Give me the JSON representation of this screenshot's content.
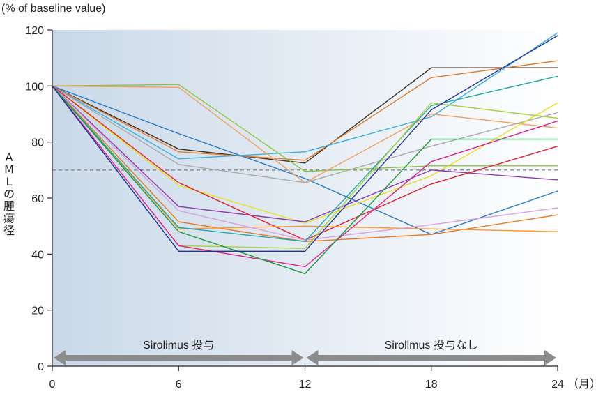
{
  "chart_data": {
    "type": "line",
    "title": "",
    "unit_label": "(% of baseline value)",
    "ylabel": "AMLの腫瘍径",
    "xlabel_unit": "（月）",
    "x": [
      0,
      6,
      12,
      18,
      24
    ],
    "x_ticks": [
      "0",
      "6",
      "12",
      "18",
      "24"
    ],
    "y_ticks": [
      "0",
      "20",
      "40",
      "60",
      "80",
      "100",
      "120"
    ],
    "ylim": [
      0,
      120
    ],
    "xlim": [
      0,
      24
    ],
    "reference_line": {
      "y": 70,
      "style": "dashed",
      "color": "#888888"
    },
    "phases": [
      {
        "label": "Sirolimus 投与",
        "x_start": 0,
        "x_end": 12
      },
      {
        "label": "Sirolimus 投与なし",
        "x_start": 12,
        "x_end": 24
      }
    ],
    "background": {
      "shaded_from": 0,
      "shaded_to": 24,
      "color_left": "#c9d8e8",
      "color_right": "#ffffff"
    },
    "legend": "none",
    "grid": false,
    "series": [
      {
        "color": "#3a2a1c",
        "points": [
          [
            0,
            100
          ],
          [
            6,
            77.5
          ],
          [
            12,
            72.5
          ],
          [
            18,
            106.5
          ],
          [
            24,
            106.5
          ]
        ]
      },
      {
        "color": "#e07a2a",
        "points": [
          [
            0,
            100
          ],
          [
            6,
            76.5
          ],
          [
            12,
            73.5
          ],
          [
            18,
            103
          ],
          [
            24,
            109
          ]
        ]
      },
      {
        "color": "#2a7bc8",
        "points": [
          [
            0,
            100
          ],
          [
            6,
            83
          ],
          [
            12,
            67
          ],
          [
            18,
            47
          ],
          [
            24,
            62.5
          ]
        ]
      },
      {
        "color": "#35b0d8",
        "points": [
          [
            0,
            100
          ],
          [
            6,
            74
          ],
          [
            12,
            76.5
          ],
          [
            18,
            89
          ],
          [
            24,
            119
          ]
        ]
      },
      {
        "color": "#8cc63e",
        "points": [
          [
            0,
            100
          ],
          [
            6,
            100.5
          ],
          [
            12,
            69.5
          ],
          [
            18,
            71.5
          ],
          [
            24,
            71.5
          ]
        ]
      },
      {
        "color": "#f0a060",
        "points": [
          [
            0,
            100
          ],
          [
            6,
            99.5
          ],
          [
            12,
            65.5
          ],
          [
            18,
            90
          ],
          [
            24,
            85
          ]
        ]
      },
      {
        "color": "#aaaaaa",
        "points": [
          [
            0,
            100
          ],
          [
            6,
            72
          ],
          [
            12,
            65.5
          ],
          [
            18,
            78.5
          ],
          [
            24,
            90.5
          ]
        ]
      },
      {
        "color": "#e8e020",
        "points": [
          [
            0,
            100
          ],
          [
            6,
            64.5
          ],
          [
            12,
            51
          ],
          [
            18,
            68
          ],
          [
            24,
            94
          ]
        ]
      },
      {
        "color": "#8a3aa8",
        "points": [
          [
            0,
            100
          ],
          [
            6,
            57
          ],
          [
            12,
            51.5
          ],
          [
            18,
            70
          ],
          [
            24,
            66.5
          ]
        ]
      },
      {
        "color": "#e02030",
        "points": [
          [
            0,
            100
          ],
          [
            6,
            65.5
          ],
          [
            12,
            45
          ],
          [
            18,
            65
          ],
          [
            24,
            78.5
          ]
        ]
      },
      {
        "color": "#e87820",
        "points": [
          [
            0,
            100
          ],
          [
            6,
            51.5
          ],
          [
            12,
            44.5
          ],
          [
            18,
            47
          ],
          [
            24,
            54
          ]
        ]
      },
      {
        "color": "#ff9933",
        "points": [
          [
            0,
            100
          ],
          [
            6,
            49
          ],
          [
            12,
            50
          ],
          [
            18,
            49
          ],
          [
            24,
            48
          ]
        ]
      },
      {
        "color": "#d8a0e0",
        "points": [
          [
            0,
            100
          ],
          [
            6,
            55.5
          ],
          [
            12,
            45
          ],
          [
            18,
            50.5
          ],
          [
            24,
            56.5
          ]
        ]
      },
      {
        "color": "#20a8a8",
        "points": [
          [
            0,
            100
          ],
          [
            6,
            49.5
          ],
          [
            12,
            44.5
          ],
          [
            18,
            93
          ],
          [
            24,
            103.5
          ]
        ]
      },
      {
        "color": "#a8d040",
        "points": [
          [
            0,
            100
          ],
          [
            6,
            43
          ],
          [
            12,
            42
          ],
          [
            18,
            94
          ],
          [
            24,
            88.5
          ]
        ]
      },
      {
        "color": "#e0208a",
        "points": [
          [
            0,
            100
          ],
          [
            6,
            43
          ],
          [
            12,
            35.5
          ],
          [
            18,
            73
          ],
          [
            24,
            87.5
          ]
        ]
      },
      {
        "color": "#1a9a3a",
        "points": [
          [
            0,
            100
          ],
          [
            6,
            48
          ],
          [
            12,
            33
          ],
          [
            18,
            81
          ],
          [
            24,
            81
          ]
        ]
      },
      {
        "color": "#2030a0",
        "points": [
          [
            0,
            100
          ],
          [
            6,
            41
          ],
          [
            12,
            41
          ],
          [
            18,
            91.5
          ],
          [
            24,
            118
          ]
        ]
      }
    ]
  }
}
